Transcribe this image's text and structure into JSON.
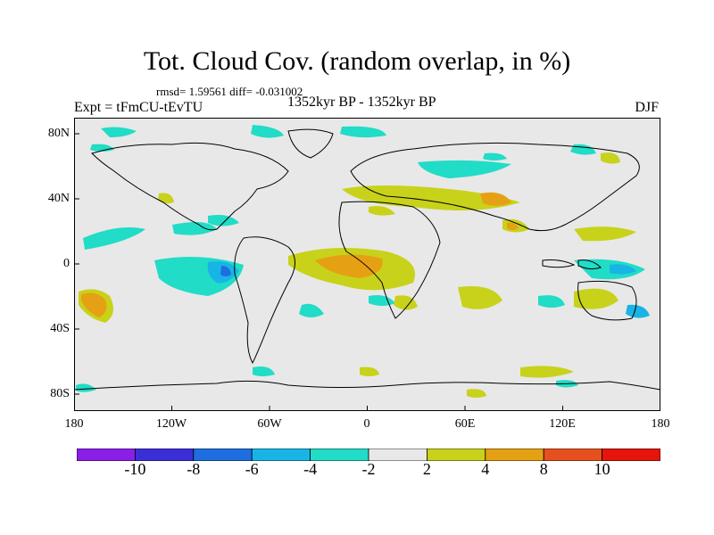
{
  "title": "Tot. Cloud Cov. (random overlap, in %)",
  "stats": "rmsd= 1.59561 diff= -0.031002",
  "expt": "Expt = tFmCU-tEvTU",
  "period": "1352kyr BP - 1352kyr BP",
  "season": "DJF",
  "lat_labels": [
    "80N",
    "40N",
    "0",
    "40S",
    "80S"
  ],
  "lon_labels": [
    "180",
    "120W",
    "60W",
    "0",
    "60E",
    "120E",
    "180"
  ],
  "colorbar": {
    "labels": [
      "-10",
      "-8",
      "-6",
      "-4",
      "-2",
      "2",
      "4",
      "8",
      "10"
    ],
    "colors": [
      "#8a1ee6",
      "#3a2fd6",
      "#1e6ee0",
      "#19b4e6",
      "#21dcc6",
      "#e8e8e8",
      "#c8d21a",
      "#e6a014",
      "#e6501e",
      "#e6140a"
    ]
  },
  "map_colors": {
    "land_background": "#e8e8e8",
    "coast": "#000000",
    "neg_weak": "#21dcc6",
    "neg_mid": "#19b4e6",
    "neg_strong": "#1e6ee0",
    "pos_weak": "#c8d21a",
    "pos_mid": "#e6a014"
  }
}
